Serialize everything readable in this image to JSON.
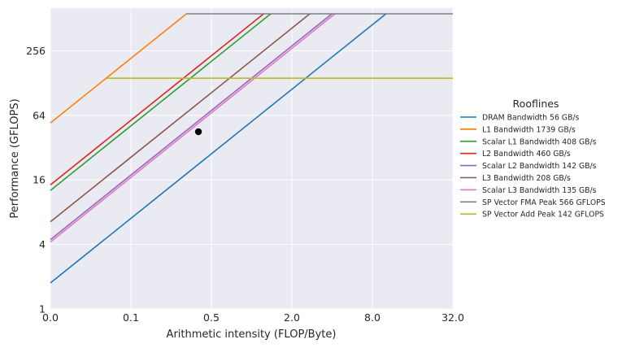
{
  "chart_data": {
    "type": "line",
    "title": "",
    "xlabel": "Arithmetic intensity (FLOP/Byte)",
    "ylabel": "Performance (GFLOPS)",
    "xscale": "log2",
    "yscale": "log2",
    "xlim": [
      0.03125,
      32
    ],
    "ylim": [
      1,
      640
    ],
    "x_tick_values": [
      0.03125,
      0.125,
      0.5,
      2,
      8,
      32
    ],
    "x_tick_labels": [
      "0.0",
      "0.1",
      "0.5",
      "2.0",
      "8.0",
      "32.0"
    ],
    "y_tick_values": [
      1,
      4,
      16,
      64,
      256
    ],
    "y_tick_labels": [
      "1",
      "4",
      "16",
      "64",
      "256"
    ],
    "grid": true,
    "legend": {
      "title": "Rooflines",
      "placement": "right"
    },
    "series": [
      {
        "name": "DRAM Bandwidth 56 GB/s",
        "kind": "bandwidth",
        "value": 56,
        "color": "#1f77b4"
      },
      {
        "name": "L1 Bandwidth 1739 GB/s",
        "kind": "bandwidth",
        "value": 1739,
        "color": "#ff7f0e"
      },
      {
        "name": "Scalar L1 Bandwidth 408 GB/s",
        "kind": "bandwidth",
        "value": 408,
        "color": "#2ca02c"
      },
      {
        "name": "L2 Bandwidth 460 GB/s",
        "kind": "bandwidth",
        "value": 460,
        "color": "#d62728"
      },
      {
        "name": "Scalar L2 Bandwidth 142 GB/s",
        "kind": "bandwidth",
        "value": 142,
        "color": "#9467bd"
      },
      {
        "name": "L3 Bandwidth 208 GB/s",
        "kind": "bandwidth",
        "value": 208,
        "color": "#8c564b"
      },
      {
        "name": "Scalar L3 Bandwidth 135 GB/s",
        "kind": "bandwidth",
        "value": 135,
        "color": "#e377c2"
      },
      {
        "name": "SP Vector FMA Peak 566 GFLOPS",
        "kind": "peak",
        "value": 566,
        "color": "#7f7f7f"
      },
      {
        "name": "SP Vector Add Peak 142 GFLOPS",
        "kind": "peak",
        "value": 142,
        "color": "#bcbd22"
      }
    ],
    "points": [
      {
        "x": 0.4,
        "y": 45,
        "color": "#000000"
      }
    ]
  }
}
